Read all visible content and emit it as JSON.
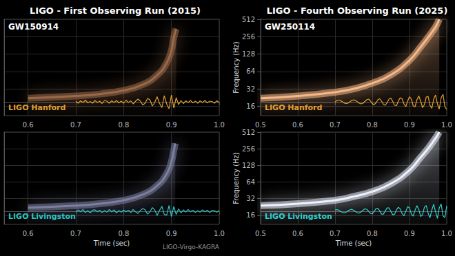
{
  "chart_data": [
    {
      "type": "line",
      "title": "LIGO - First Observing Run (2015)",
      "subtitle": "GW150914",
      "annotations": [
        "LIGO Hanford"
      ],
      "xlim": [
        0.55,
        1.0
      ],
      "xticks": [
        0.6,
        0.7,
        0.8,
        0.9,
        {
          "value": 1,
          "label": "1.0"
        }
      ],
      "ylim": [
        11,
        512
      ],
      "yticks": [
        16,
        32,
        64,
        128,
        256,
        512
      ],
      "log": "y",
      "grid": true,
      "tick_labels": "x",
      "y2lim": [
        -2,
        12
      ],
      "series": [
        {
          "type": "area",
          "color": "#9a6a48",
          "x": [
            0.6,
            0.7,
            0.75,
            0.8,
            0.84,
            0.87,
            0.89,
            0.9,
            0.905,
            0.91
          ],
          "values": [
            22,
            24,
            26,
            30,
            38,
            55,
            90,
            150,
            250,
            350
          ]
        },
        {
          "type": "line",
          "color": "#e0a030",
          "axis": "y2",
          "x": [
            0.7,
            0.705,
            0.71,
            0.715,
            0.72,
            0.725,
            0.73,
            0.735,
            0.74,
            0.745,
            0.75,
            0.755,
            0.76,
            0.765,
            0.77,
            0.775,
            0.78,
            0.785,
            0.79,
            0.795,
            0.8,
            0.805,
            0.81,
            0.815,
            0.82,
            0.825,
            0.83,
            0.835,
            0.84,
            0.845,
            0.85,
            0.855,
            0.86,
            0.865,
            0.87,
            0.875,
            0.88,
            0.885,
            0.89,
            0.895,
            0.9,
            0.905,
            0.91,
            0.915,
            0.92,
            0.925,
            0.93,
            0.935,
            0.94,
            0.945,
            0.95,
            0.955,
            0.96,
            0.965,
            0.97,
            0.975,
            0.98,
            0.985,
            0.99,
            0.995,
            1.0
          ],
          "values": [
            0.1,
            -0.2,
            0.15,
            -0.1,
            0.25,
            -0.15,
            0.05,
            -0.2,
            0.2,
            -0.1,
            0.1,
            -0.25,
            0.2,
            0.1,
            -0.2,
            0.15,
            -0.1,
            0.2,
            -0.15,
            0.1,
            -0.2,
            0.25,
            -0.1,
            0.15,
            -0.3,
            0.1,
            0.4,
            0.1,
            -0.45,
            -0.2,
            0.5,
            0.3,
            -0.6,
            -0.1,
            0.75,
            -0.2,
            -0.85,
            0.9,
            -0.3,
            -1.0,
            1.0,
            -0.9,
            0.6,
            -0.4,
            0.2,
            -0.25,
            0.15,
            -0.1,
            0.2,
            -0.15,
            0.1,
            -0.2,
            0.15,
            -0.1,
            0.2,
            -0.15,
            0.1,
            0.05,
            -0.2,
            0.15,
            -0.1
          ]
        }
      ]
    },
    {
      "type": "line",
      "xlabel": "Time (sec)",
      "annotations": [
        "LIGO Livingston",
        "LIGO-Virgo-KAGRA"
      ],
      "xlim": [
        0.55,
        1.0
      ],
      "xticks": [
        0.6,
        0.7,
        0.8,
        0.9,
        {
          "value": 1,
          "label": "1.0"
        }
      ],
      "ylim": [
        11,
        512
      ],
      "yticks": [
        16,
        32,
        64,
        128,
        256,
        512
      ],
      "log": "y",
      "grid": true,
      "tick_labels": "x",
      "y2lim": [
        -2,
        12
      ],
      "series": [
        {
          "type": "area",
          "color": "#7c80a0",
          "x": [
            0.6,
            0.7,
            0.75,
            0.8,
            0.84,
            0.87,
            0.89,
            0.9,
            0.905,
            0.908
          ],
          "values": [
            22,
            24,
            26,
            30,
            38,
            55,
            90,
            150,
            240,
            320
          ]
        },
        {
          "type": "line",
          "color": "#2cc6c6",
          "axis": "y2",
          "x": [
            0.7,
            0.705,
            0.71,
            0.715,
            0.72,
            0.725,
            0.73,
            0.735,
            0.74,
            0.745,
            0.75,
            0.755,
            0.76,
            0.765,
            0.77,
            0.775,
            0.78,
            0.785,
            0.79,
            0.795,
            0.8,
            0.805,
            0.81,
            0.815,
            0.82,
            0.825,
            0.83,
            0.835,
            0.84,
            0.845,
            0.85,
            0.855,
            0.86,
            0.865,
            0.87,
            0.875,
            0.88,
            0.885,
            0.89,
            0.895,
            0.9,
            0.905,
            0.91,
            0.915,
            0.92,
            0.925,
            0.93,
            0.935,
            0.94,
            0.945,
            0.95,
            0.955,
            0.96,
            0.965,
            0.97,
            0.975,
            0.98,
            0.985,
            0.99,
            0.995,
            1.0
          ],
          "values": [
            -0.15,
            0.2,
            -0.1,
            0.25,
            -0.2,
            0.1,
            -0.25,
            0.15,
            0.2,
            -0.1,
            0.15,
            -0.2,
            0.1,
            -0.15,
            0.25,
            -0.1,
            0.2,
            -0.25,
            0.1,
            -0.15,
            0.2,
            -0.1,
            0.15,
            -0.2,
            0.25,
            -0.1,
            -0.35,
            0.1,
            0.4,
            0.2,
            -0.45,
            -0.1,
            0.55,
            0.2,
            -0.65,
            0.1,
            0.75,
            -0.5,
            -0.6,
            0.85,
            -0.8,
            0.7,
            -0.5,
            0.35,
            -0.25,
            0.2,
            -0.15,
            0.25,
            -0.1,
            0.15,
            -0.2,
            0.1,
            -0.15,
            0.2,
            -0.1,
            0.15,
            -0.2,
            0.1,
            0.05,
            -0.15,
            0.1
          ]
        }
      ]
    },
    {
      "type": "line",
      "title": "LIGO - Fourth Observing Run (2025)",
      "subtitle": "GW250114",
      "annotations": [
        "LIGO Hanford"
      ],
      "ylabel": "Frequency (Hz)",
      "xlim": [
        0.5,
        1.0
      ],
      "xticks": [
        0.5,
        0.6,
        0.7,
        0.8,
        0.9,
        {
          "value": 1,
          "label": "1.0"
        }
      ],
      "ylim": [
        11,
        512
      ],
      "yticks": [
        16,
        32,
        64,
        128,
        256,
        512
      ],
      "log": "y",
      "grid": true,
      "y2lim": [
        -2,
        12
      ],
      "series": [
        {
          "type": "area",
          "color": "#f7b888",
          "x": [
            0.5,
            0.6,
            0.7,
            0.75,
            0.8,
            0.85,
            0.9,
            0.93,
            0.95,
            0.97,
            0.98
          ],
          "values": [
            22,
            24,
            28,
            32,
            40,
            56,
            100,
            170,
            250,
            380,
            512
          ]
        },
        {
          "type": "line",
          "color": "#e8a030",
          "axis": "y2",
          "x": [
            0.7,
            0.705,
            0.71,
            0.715,
            0.72,
            0.725,
            0.73,
            0.735,
            0.74,
            0.745,
            0.75,
            0.755,
            0.76,
            0.765,
            0.77,
            0.775,
            0.78,
            0.785,
            0.79,
            0.795,
            0.8,
            0.805,
            0.81,
            0.815,
            0.82,
            0.825,
            0.83,
            0.835,
            0.84,
            0.845,
            0.85,
            0.855,
            0.86,
            0.865,
            0.87,
            0.875,
            0.88,
            0.885,
            0.89,
            0.895,
            0.9,
            0.905,
            0.91,
            0.915,
            0.92,
            0.925,
            0.93,
            0.935,
            0.94,
            0.945,
            0.95,
            0.955,
            0.96,
            0.965,
            0.97,
            0.975,
            0.98,
            0.985,
            0.99,
            0.995,
            1.0
          ],
          "values": [
            0,
            0.18,
            0.25,
            0.18,
            0,
            -0.18,
            -0.25,
            -0.18,
            0,
            0.2,
            0.28,
            0.2,
            0,
            -0.2,
            -0.3,
            -0.2,
            0.05,
            0.3,
            0.4,
            0.15,
            -0.25,
            -0.42,
            -0.15,
            0.3,
            0.45,
            0.1,
            -0.35,
            -0.5,
            -0.1,
            0.4,
            0.55,
            0.05,
            -0.5,
            -0.55,
            0.1,
            0.6,
            0.45,
            -0.3,
            -0.7,
            0.1,
            0.75,
            0.4,
            -0.6,
            -0.7,
            0.3,
            0.85,
            0.1,
            -0.85,
            -0.4,
            0.7,
            0.8,
            -0.5,
            -0.95,
            0.4,
            1.0,
            -0.3,
            -1.05,
            0.6,
            1.1,
            -0.7,
            -1.1
          ]
        }
      ]
    },
    {
      "type": "line",
      "xlabel": "Time (sec)",
      "ylabel": "Frequency (Hz)",
      "annotations": [
        "LIGO Livingston"
      ],
      "xlim": [
        0.5,
        1.0
      ],
      "xticks": [
        0.5,
        0.6,
        0.7,
        0.8,
        0.9,
        {
          "value": 1,
          "label": "1.0"
        }
      ],
      "ylim": [
        11,
        512
      ],
      "yticks": [
        16,
        32,
        64,
        128,
        256,
        512
      ],
      "log": "y",
      "grid": true,
      "y2lim": [
        -2,
        12
      ],
      "series": [
        {
          "type": "area",
          "color": "#eef2ff",
          "x": [
            0.5,
            0.6,
            0.7,
            0.75,
            0.8,
            0.85,
            0.9,
            0.93,
            0.95,
            0.97,
            0.98
          ],
          "values": [
            24,
            26,
            30,
            35,
            43,
            60,
            105,
            180,
            260,
            400,
            512
          ]
        },
        {
          "type": "line",
          "color": "#30d0d0",
          "axis": "y2",
          "x": [
            0.7,
            0.705,
            0.71,
            0.715,
            0.72,
            0.725,
            0.73,
            0.735,
            0.74,
            0.745,
            0.75,
            0.755,
            0.76,
            0.765,
            0.77,
            0.775,
            0.78,
            0.785,
            0.79,
            0.795,
            0.8,
            0.805,
            0.81,
            0.815,
            0.82,
            0.825,
            0.83,
            0.835,
            0.84,
            0.845,
            0.85,
            0.855,
            0.86,
            0.865,
            0.87,
            0.875,
            0.88,
            0.885,
            0.89,
            0.895,
            0.9,
            0.905,
            0.91,
            0.915,
            0.92,
            0.925,
            0.93,
            0.935,
            0.94,
            0.945,
            0.95,
            0.955,
            0.96,
            0.965,
            0.97,
            0.975,
            0.98,
            0.985,
            0.99,
            0.995,
            1.0
          ],
          "values": [
            0.15,
            0.25,
            0.15,
            -0.05,
            -0.2,
            -0.25,
            -0.15,
            0.05,
            0.22,
            0.28,
            0.15,
            -0.05,
            -0.25,
            -0.28,
            -0.1,
            0.15,
            0.35,
            0.3,
            0.0,
            -0.35,
            -0.4,
            -0.05,
            0.4,
            0.45,
            0.05,
            -0.45,
            -0.45,
            0.05,
            0.5,
            0.5,
            -0.05,
            -0.55,
            -0.45,
            0.2,
            0.6,
            0.35,
            -0.35,
            -0.7,
            -0.05,
            0.7,
            0.5,
            -0.45,
            -0.75,
            0.15,
            0.85,
            0.25,
            -0.8,
            -0.55,
            0.6,
            0.85,
            -0.3,
            -1.0,
            0.2,
            1.05,
            -0.1,
            -1.1,
            0.5,
            1.1,
            -0.7,
            -1.0,
            0.8
          ]
        }
      ]
    }
  ]
}
